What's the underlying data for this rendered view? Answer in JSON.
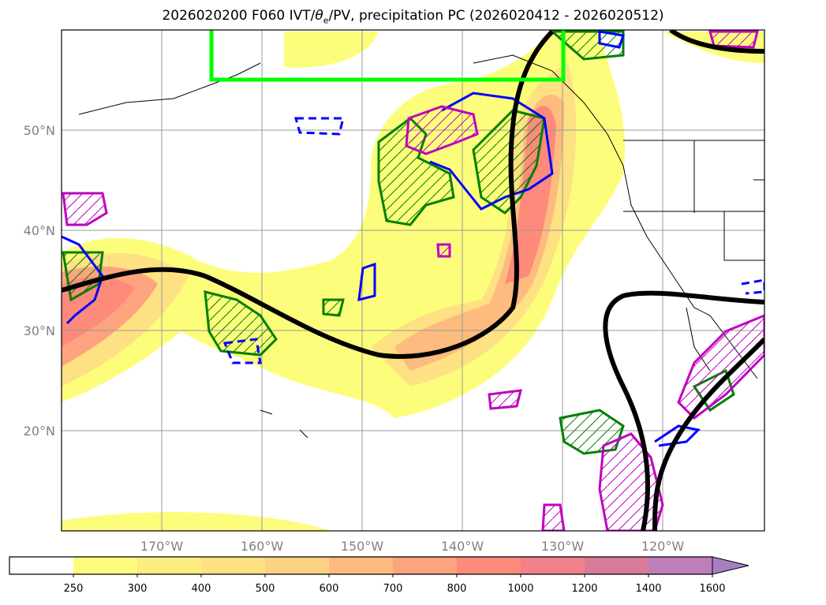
{
  "title": {
    "prefix": "2026020200 F060 IVT/",
    "theta": "θ",
    "theta_sub": "e",
    "suffix": "/PV, precipitation PC (2026020412 - 2026020512)"
  },
  "map": {
    "lat_labels": [
      "50°N",
      "40°N",
      "30°N",
      "20°N"
    ],
    "lon_labels": [
      "170°W",
      "160°W",
      "150°W",
      "140°W",
      "130°W",
      "120°W"
    ],
    "extent": {
      "lon_west": -180,
      "lon_east": -110,
      "lat_south": 10,
      "lat_north": 60
    },
    "highlight_box_color": "#00ff00",
    "contour_colors": {
      "theta_e": "#000000",
      "precip_green": "#008000",
      "precip_blue": "#0000ff",
      "precip_magenta": "#c000c0"
    }
  },
  "colorbar": {
    "ticks": [
      "250",
      "300",
      "400",
      "500",
      "600",
      "700",
      "800",
      "1000",
      "1200",
      "1400",
      "1600"
    ],
    "colors": [
      "#ffffff",
      "#fdfd7c",
      "#fdec80",
      "#fde182",
      "#fdd381",
      "#fdbb7f",
      "#fda37e",
      "#fd8a7a",
      "#f28088",
      "#d97a98",
      "#bf7eba",
      "#a77fc3"
    ]
  }
}
